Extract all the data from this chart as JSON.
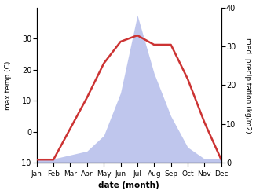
{
  "months": [
    "Jan",
    "Feb",
    "Mar",
    "Apr",
    "May",
    "Jun",
    "Jul",
    "Aug",
    "Sep",
    "Oct",
    "Nov",
    "Dec"
  ],
  "temp": [
    -9,
    -9,
    1,
    11,
    22,
    29,
    31,
    28,
    28,
    17,
    3,
    -9
  ],
  "precip": [
    1,
    1,
    2,
    3,
    7,
    18,
    38,
    23,
    12,
    4,
    1,
    1
  ],
  "temp_color": "#cc3333",
  "precip_color": "#aab4e8",
  "temp_ylim": [
    -10,
    40
  ],
  "precip_ylim": [
    0,
    40
  ],
  "temp_yticks": [
    -10,
    0,
    10,
    20,
    30
  ],
  "precip_yticks": [
    0,
    10,
    20,
    30,
    40
  ],
  "ylabel_left": "max temp (C)",
  "ylabel_right": "med. precipitation (kg/m2)",
  "xlabel": "date (month)",
  "linewidth": 1.8,
  "fig_width": 3.26,
  "fig_height": 2.47,
  "dpi": 100
}
